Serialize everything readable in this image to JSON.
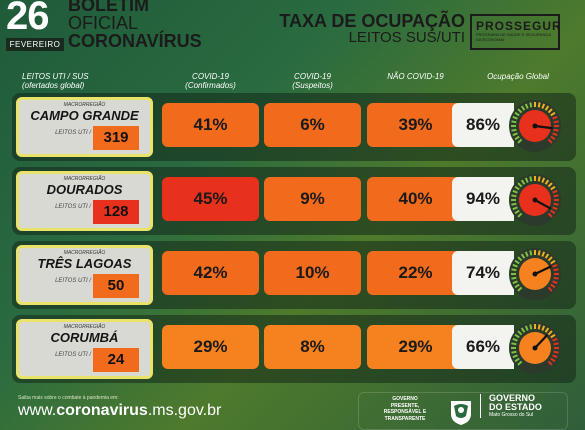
{
  "header": {
    "day": "26",
    "month": "FEVEREIRO",
    "title_line1": "BOLETIM",
    "title_line2": "OFICIAL",
    "title_line3": "CORONAVÍRUS",
    "taxa_line1": "TAXA DE OCUPAÇÃO",
    "taxa_line2": "LEITOS SUS/UTI",
    "prossegur": "PROSSEGUR",
    "prossegur_sub": "PROGRAMA DE SAÚDE E SEGURANÇA DA ECONOMIA"
  },
  "columns": {
    "leitos_line1": "LEITOS UTI / SUS",
    "leitos_line2": "(ofertados global)",
    "confirmados_line1": "COVID-19",
    "confirmados_line2": "(Confirmados)",
    "suspeitos_line1": "COVID-19",
    "suspeitos_line2": "(Suspeitos)",
    "nao_covid": "NÃO COVID-19",
    "global": "Ocupação Global"
  },
  "rows": [
    {
      "macro": "MACRORREGIÃO",
      "name": "CAMPO GRANDE",
      "leitos_label": "LEITOS UTI / SUS",
      "capacity": "319",
      "confirmados": "41%",
      "suspeitos": "6%",
      "nao_covid": "39%",
      "global": "86%",
      "global_value": 86
    },
    {
      "macro": "MACRORREGIÃO",
      "name": "DOURADOS",
      "leitos_label": "LEITOS UTI / SUS",
      "capacity": "128",
      "confirmados": "45%",
      "suspeitos": "9%",
      "nao_covid": "40%",
      "global": "94%",
      "global_value": 94
    },
    {
      "macro": "MACRORREGIÃO",
      "name": "TRÊS LAGOAS",
      "leitos_label": "LEITOS UTI / SUS",
      "capacity": "50",
      "confirmados": "42%",
      "suspeitos": "10%",
      "nao_covid": "22%",
      "global": "74%",
      "global_value": 74
    },
    {
      "macro": "MACRORREGIÃO",
      "name": "CORUMBÁ",
      "leitos_label": "LEITOS UTI / SUS",
      "capacity": "24",
      "confirmados": "29%",
      "suspeitos": "8%",
      "nao_covid": "29%",
      "global": "66%",
      "global_value": 66
    }
  ],
  "footer": {
    "small": "Saiba mais sobre o combate à pandemia em:",
    "url_prefix": "www.",
    "url_bold": "coronavirus",
    "url_suffix": ".ms.gov.br",
    "gov_line1": "GOVERNO",
    "gov_line2": "PRESENTE,",
    "gov_line3": "RESPONSÁVEL E",
    "gov_line4": "TRANSPARENTE",
    "estado_line1": "GOVERNO",
    "estado_line2": "DO ESTADO",
    "estado_line3": "Mato Grosso do Sul"
  },
  "colors": {
    "red": "#e8311c",
    "orange": "#f26b1d",
    "light_orange": "#f5821f",
    "highlight": "#e9e36a"
  }
}
